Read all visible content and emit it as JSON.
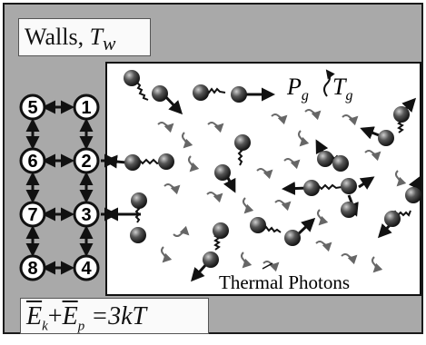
{
  "walls": {
    "text": "Walls, ",
    "symbol": "T",
    "sub": "w"
  },
  "equation": {
    "e": "E",
    "k": "k",
    "plus": "+",
    "ep": "E",
    "p": "p",
    "rhs": " =3kT"
  },
  "gas": {
    "P": "P",
    "Psub": "g",
    "T": "T",
    "Tsub": "g"
  },
  "photon_label": "Thermal Photons",
  "lattice_nodes": [
    "5",
    "1",
    "6",
    "2",
    "7",
    "3",
    "8",
    "4"
  ]
}
